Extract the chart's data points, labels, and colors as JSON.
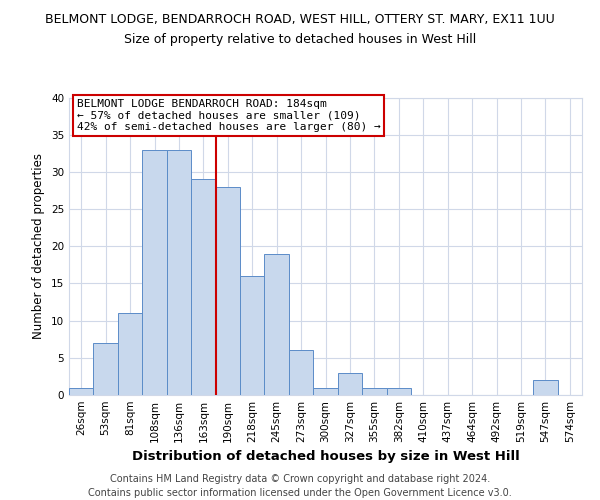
{
  "title_line1": "BELMONT LODGE, BENDARROCH ROAD, WEST HILL, OTTERY ST. MARY, EX11 1UU",
  "title_line2": "Size of property relative to detached houses in West Hill",
  "xlabel": "Distribution of detached houses by size in West Hill",
  "ylabel": "Number of detached properties",
  "bin_labels": [
    "26sqm",
    "53sqm",
    "81sqm",
    "108sqm",
    "136sqm",
    "163sqm",
    "190sqm",
    "218sqm",
    "245sqm",
    "273sqm",
    "300sqm",
    "327sqm",
    "355sqm",
    "382sqm",
    "410sqm",
    "437sqm",
    "464sqm",
    "492sqm",
    "519sqm",
    "547sqm",
    "574sqm"
  ],
  "bin_values": [
    1,
    7,
    11,
    33,
    33,
    29,
    28,
    16,
    19,
    6,
    1,
    3,
    1,
    1,
    0,
    0,
    0,
    0,
    0,
    2,
    0
  ],
  "bar_color": "#c8d8ed",
  "bar_edge_color": "#5b8cc8",
  "vline_color": "#cc0000",
  "ylim": [
    0,
    40
  ],
  "yticks": [
    0,
    5,
    10,
    15,
    20,
    25,
    30,
    35,
    40
  ],
  "annotation_title": "BELMONT LODGE BENDARROCH ROAD: 184sqm",
  "annotation_line2": "← 57% of detached houses are smaller (109)",
  "annotation_line3": "42% of semi-detached houses are larger (80) →",
  "annotation_box_color": "#ffffff",
  "annotation_box_edge": "#cc0000",
  "footer_line1": "Contains HM Land Registry data © Crown copyright and database right 2024.",
  "footer_line2": "Contains public sector information licensed under the Open Government Licence v3.0.",
  "plot_bg_color": "#ffffff",
  "fig_bg_color": "#ffffff",
  "grid_color": "#d0d8e8",
  "title_fontsize": 9.0,
  "subtitle_fontsize": 9.0,
  "ylabel_fontsize": 8.5,
  "xlabel_fontsize": 9.5,
  "tick_fontsize": 7.5,
  "annotation_fontsize": 8.0,
  "footer_fontsize": 7.0
}
